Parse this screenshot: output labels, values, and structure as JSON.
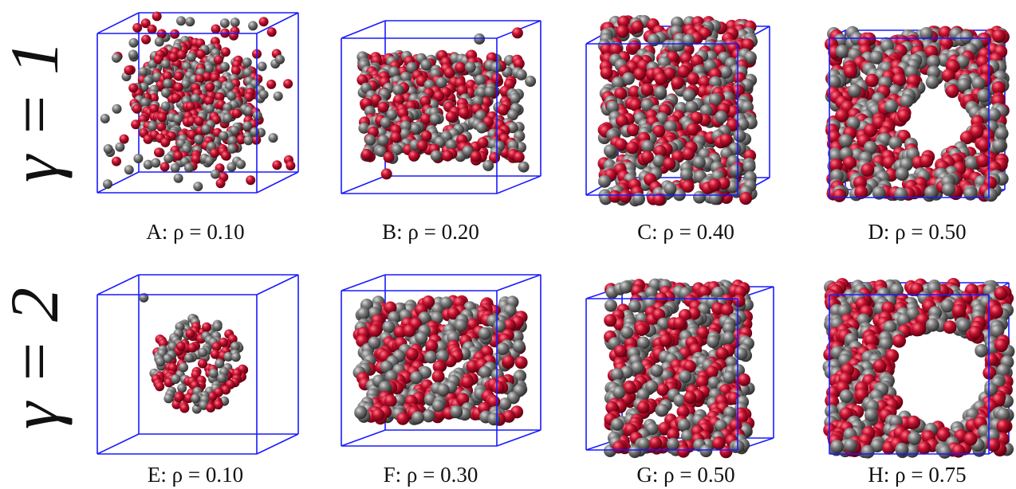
{
  "rows": [
    {
      "label": "γ = 1",
      "panels": [
        {
          "caption": "A: ρ = 0.10"
        },
        {
          "caption": "B: ρ = 0.20"
        },
        {
          "caption": "C: ρ = 0.40"
        },
        {
          "caption": "D: ρ = 0.50"
        }
      ]
    },
    {
      "label": "γ = 2",
      "panels": [
        {
          "caption": "E: ρ = 0.10"
        },
        {
          "caption": "F: ρ = 0.30"
        },
        {
          "caption": "G: ρ = 0.50"
        },
        {
          "caption": "H: ρ = 0.75"
        }
      ]
    }
  ]
}
